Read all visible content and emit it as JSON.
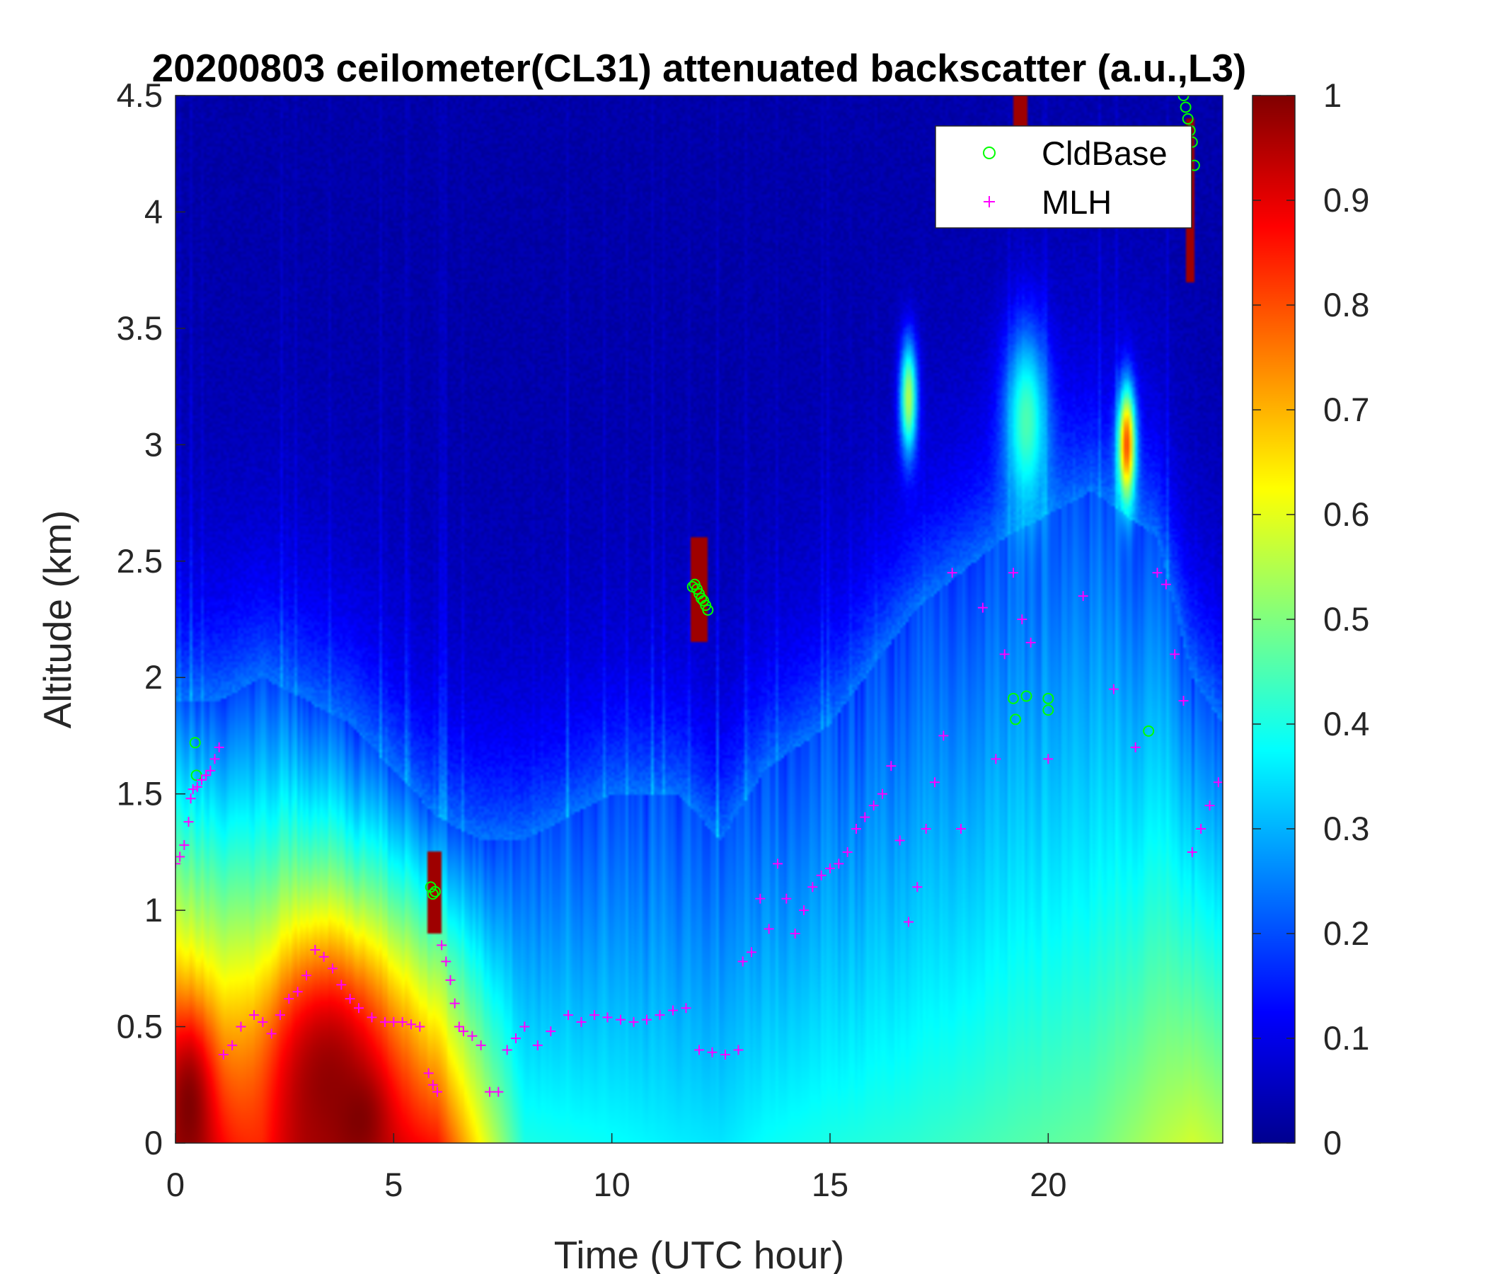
{
  "chart_data": {
    "type": "heatmap",
    "title": "20200803 ceilometer(CL31) attenuated backscatter (a.u.,L3)",
    "xlabel": "Time (UTC hour)",
    "ylabel": "Altitude (km)",
    "xlim": [
      0,
      24
    ],
    "ylim": [
      0,
      4.5
    ],
    "xticks": [
      0,
      5,
      10,
      15,
      20
    ],
    "xtick_labels": [
      "0",
      "5",
      "10",
      "15",
      "20"
    ],
    "yticks": [
      0,
      0.5,
      1,
      1.5,
      2,
      2.5,
      3,
      3.5,
      4,
      4.5
    ],
    "ytick_labels": [
      "0",
      "0.5",
      "1",
      "1.5",
      "2",
      "2.5",
      "3",
      "3.5",
      "4",
      "4.5"
    ],
    "colorbar": {
      "range": [
        0,
        1
      ],
      "colormap": "jet",
      "ticks": [
        0,
        0.1,
        0.2,
        0.3,
        0.4,
        0.5,
        0.6,
        0.7,
        0.8,
        0.9,
        1
      ],
      "tick_labels": [
        "0",
        "0.1",
        "0.2",
        "0.3",
        "0.4",
        "0.5",
        "0.6",
        "0.7",
        "0.8",
        "0.9",
        "1"
      ]
    },
    "background_field": {
      "description_columns": "approximate layer structure in data units (hour, km, backscatter)",
      "columns": [
        {
          "t": 0.0,
          "top": 1.9,
          "surface": 0.92
        },
        {
          "t": 1.0,
          "top": 1.9,
          "surface": 0.85
        },
        {
          "t": 2.0,
          "top": 2.0,
          "surface": 0.78
        },
        {
          "t": 3.0,
          "top": 1.9,
          "surface": 0.9
        },
        {
          "t": 4.0,
          "top": 1.8,
          "surface": 0.9
        },
        {
          "t": 5.0,
          "top": 1.6,
          "surface": 0.88
        },
        {
          "t": 6.0,
          "top": 1.4,
          "surface": 0.85
        },
        {
          "t": 7.0,
          "top": 1.3,
          "surface": 0.62
        },
        {
          "t": 8.0,
          "top": 1.3,
          "surface": 0.4
        },
        {
          "t": 10.0,
          "top": 1.5,
          "surface": 0.38
        },
        {
          "t": 11.5,
          "top": 1.5,
          "surface": 0.36
        },
        {
          "t": 12.5,
          "top": 1.3,
          "surface": 0.35
        },
        {
          "t": 13.5,
          "top": 1.6,
          "surface": 0.38
        },
        {
          "t": 15.0,
          "top": 1.8,
          "surface": 0.4
        },
        {
          "t": 17.0,
          "top": 2.3,
          "surface": 0.42
        },
        {
          "t": 19.0,
          "top": 2.6,
          "surface": 0.45
        },
        {
          "t": 21.0,
          "top": 2.8,
          "surface": 0.48
        },
        {
          "t": 22.5,
          "top": 2.6,
          "surface": 0.55
        },
        {
          "t": 23.3,
          "top": 2.0,
          "surface": 0.58
        },
        {
          "t": 24.0,
          "top": 1.8,
          "surface": 0.55
        }
      ],
      "hotspots": [
        {
          "t": 0.3,
          "z": 0.15,
          "v": 1.0,
          "rt": 0.6,
          "rz": 0.4
        },
        {
          "t": 3.5,
          "z": 0.25,
          "v": 0.98,
          "rt": 1.5,
          "rz": 0.55
        },
        {
          "t": 4.2,
          "z": 0.1,
          "v": 1.0,
          "rt": 0.6,
          "rz": 0.2
        },
        {
          "t": 21.8,
          "z": 3.0,
          "v": 0.8,
          "rt": 0.2,
          "rz": 0.25
        },
        {
          "t": 16.8,
          "z": 3.2,
          "v": 0.55,
          "rt": 0.2,
          "rz": 0.25
        },
        {
          "t": 19.5,
          "z": 3.1,
          "v": 0.45,
          "rt": 0.5,
          "rz": 0.4
        }
      ],
      "cloud_patches": [
        {
          "t0": 5.8,
          "t1": 6.1,
          "z0": 0.9,
          "z1": 1.25
        },
        {
          "t0": 11.8,
          "t1": 12.2,
          "z0": 2.15,
          "z1": 2.6
        },
        {
          "t0": 19.2,
          "t1": 19.5,
          "z0": 4.3,
          "z1": 4.5
        },
        {
          "t0": 23.15,
          "t1": 23.35,
          "z0": 3.7,
          "z1": 4.4
        }
      ]
    },
    "series": [
      {
        "name": "CldBase",
        "marker": "circle",
        "color": "#00ff00",
        "x": [
          0.45,
          0.48,
          5.85,
          5.9,
          5.95,
          11.85,
          11.9,
          11.95,
          12.0,
          12.05,
          12.1,
          12.15,
          12.2,
          19.2,
          19.25,
          19.5,
          20.0,
          20.0,
          22.3,
          23.1,
          23.15,
          23.2,
          23.25,
          23.3,
          23.35
        ],
        "y": [
          1.72,
          1.58,
          1.1,
          1.07,
          1.08,
          2.39,
          2.4,
          2.38,
          2.36,
          2.34,
          2.33,
          2.31,
          2.29,
          1.91,
          1.82,
          1.92,
          1.91,
          1.86,
          1.77,
          4.5,
          4.45,
          4.4,
          4.35,
          4.3,
          4.2
        ]
      },
      {
        "name": "MLH",
        "marker": "plus",
        "color": "#ff00ff",
        "x": [
          0.0,
          0.1,
          0.2,
          0.3,
          0.35,
          0.4,
          0.5,
          0.6,
          0.7,
          0.8,
          0.9,
          1.0,
          1.1,
          1.3,
          1.5,
          1.8,
          2.0,
          2.2,
          2.4,
          2.6,
          2.8,
          3.0,
          3.2,
          3.4,
          3.6,
          3.8,
          4.0,
          4.2,
          4.5,
          4.8,
          5.0,
          5.2,
          5.4,
          5.6,
          5.8,
          5.9,
          6.0,
          6.1,
          6.2,
          6.3,
          6.4,
          6.5,
          6.6,
          6.8,
          7.0,
          7.2,
          7.4,
          7.6,
          7.8,
          8.0,
          8.3,
          8.6,
          9.0,
          9.3,
          9.6,
          9.9,
          10.2,
          10.5,
          10.8,
          11.1,
          11.4,
          11.7,
          12.0,
          12.3,
          12.6,
          12.9,
          13.0,
          13.2,
          13.4,
          13.6,
          13.8,
          14.0,
          14.2,
          14.4,
          14.6,
          14.8,
          15.0,
          15.2,
          15.4,
          15.6,
          15.8,
          16.0,
          16.2,
          16.4,
          16.6,
          16.8,
          17.0,
          17.2,
          17.4,
          17.6,
          17.8,
          18.0,
          18.5,
          18.8,
          19.0,
          19.2,
          19.4,
          19.6,
          20.0,
          20.8,
          21.5,
          22.0,
          22.5,
          22.7,
          22.9,
          23.1,
          23.3,
          23.5,
          23.7,
          23.9
        ],
        "y": [
          1.2,
          1.23,
          1.28,
          1.38,
          1.48,
          1.52,
          1.53,
          1.56,
          1.58,
          1.6,
          1.65,
          1.7,
          0.38,
          0.42,
          0.5,
          0.55,
          0.52,
          0.47,
          0.55,
          0.62,
          0.65,
          0.72,
          0.83,
          0.8,
          0.75,
          0.68,
          0.62,
          0.58,
          0.54,
          0.52,
          0.52,
          0.52,
          0.51,
          0.5,
          0.3,
          0.25,
          0.22,
          0.85,
          0.78,
          0.7,
          0.6,
          0.5,
          0.48,
          0.46,
          0.42,
          0.22,
          0.22,
          0.4,
          0.45,
          0.5,
          0.42,
          0.48,
          0.55,
          0.52,
          0.55,
          0.54,
          0.53,
          0.52,
          0.53,
          0.55,
          0.57,
          0.58,
          0.4,
          0.39,
          0.38,
          0.4,
          0.78,
          0.82,
          1.05,
          0.92,
          1.2,
          1.05,
          0.9,
          1.0,
          1.1,
          1.15,
          1.18,
          1.2,
          1.25,
          1.35,
          1.4,
          1.45,
          1.5,
          1.62,
          1.3,
          0.95,
          1.1,
          1.35,
          1.55,
          1.75,
          2.45,
          1.35,
          2.3,
          1.65,
          2.1,
          2.45,
          2.25,
          2.15,
          1.65,
          2.35,
          1.95,
          1.7,
          2.45,
          2.4,
          2.1,
          1.9,
          1.25,
          1.35,
          1.45,
          1.55
        ]
      }
    ],
    "legend": {
      "position": "top-right",
      "entries": [
        {
          "label": "CldBase",
          "marker": "circle",
          "color": "#00ff00"
        },
        {
          "label": "MLH",
          "marker": "plus",
          "color": "#ff00ff"
        }
      ]
    }
  }
}
